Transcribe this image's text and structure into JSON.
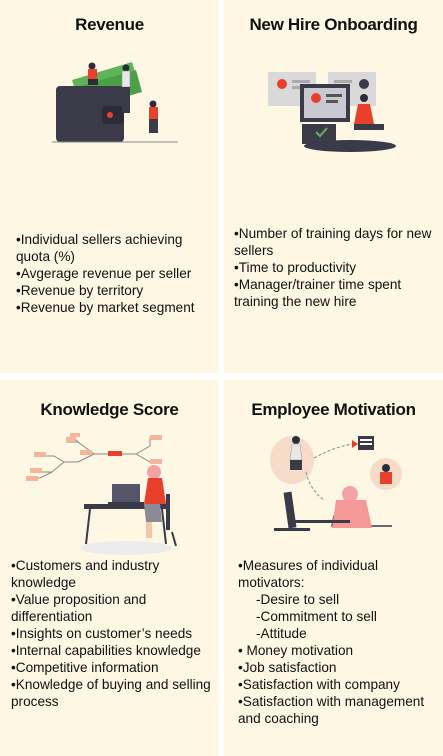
{
  "cards": [
    {
      "title": "Revenue",
      "items": [
        "•Individual sellers achieving quota (%)",
        "•Avgerage revenue per seller",
        "•Revenue by territory",
        "•Revenue by market segment"
      ]
    },
    {
      "title": "New Hire Onboarding",
      "items": [
        "•Number of training days for new sellers",
        "•Time to productivity",
        "•Manager/trainer time spent training the new hire"
      ]
    },
    {
      "title": "Knowledge Score",
      "items": [
        "•Customers and industry knowledge",
        "•Value proposition and differentiation",
        "•Insights on customer’s needs",
        "•Internal capabilities knowledge",
        "•Competitive information",
        "•Knowledge of buying and selling process"
      ]
    },
    {
      "title": "Employee Motivation",
      "items": [
        "•Measures of individual motivators:",
        "-Desire to sell",
        "-Commitment to sell",
        "-Attitude",
        "• Money motivation",
        "•Job satisfaction",
        "•Satisfaction with company",
        "•Satisfaction with management and coaching"
      ]
    }
  ],
  "icons": {
    "revenue": "wallet-money-people-illustration",
    "onboarding": "candidate-profiles-laptop-illustration",
    "knowledge": "mind-map-desk-illustration",
    "motivation": "motivation-cycle-illustration"
  },
  "colors": {
    "card_bg": "#fdf7e3",
    "accent": "#e8402a",
    "money_green": "#5fb45a",
    "dark": "#3a3a48"
  }
}
